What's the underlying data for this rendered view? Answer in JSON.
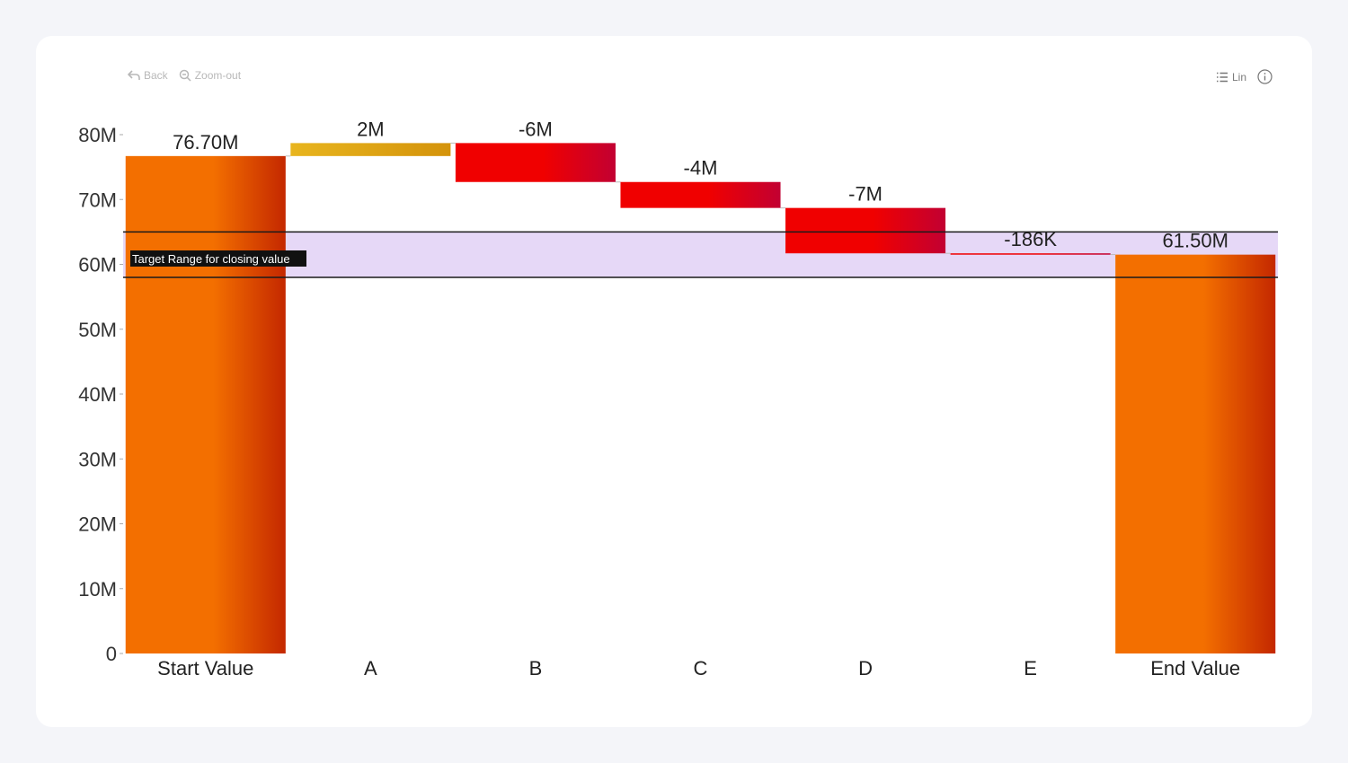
{
  "toolbar": {
    "back_label": "Back",
    "zoom_out_label": "Zoom-out",
    "scale_label": "Lin",
    "icons": {
      "back": "back-arrow-icon",
      "zoom_out": "zoom-out-icon",
      "scale": "list-icon",
      "info": "info-icon"
    }
  },
  "chart_data": {
    "type": "waterfall",
    "categories": [
      "Start Value",
      "A",
      "B",
      "C",
      "D",
      "E",
      "End Value"
    ],
    "values": [
      76.7,
      2,
      -6,
      -4,
      -7,
      -0.186,
      61.5
    ],
    "value_labels": [
      "76.70M",
      "2M",
      "-6M",
      "-4M",
      "-7M",
      "-186K",
      "61.50M"
    ],
    "units": "M",
    "y_ticks": [
      "0",
      "10M",
      "20M",
      "30M",
      "40M",
      "50M",
      "60M",
      "70M",
      "80M"
    ],
    "ylim": [
      0,
      80
    ],
    "target_range": {
      "label": "Target Range for closing value",
      "low": 58,
      "high": 65
    },
    "colors": {
      "total": "#f36f00",
      "total_dark": "#c42800",
      "increase": "#e8b51e",
      "increase_dark": "#d4930b",
      "decrease": "#f00000",
      "decrease_dark": "#c20032",
      "target_band": "#e6d8f7",
      "target_line": "#1a1a1a"
    },
    "grid": false
  }
}
